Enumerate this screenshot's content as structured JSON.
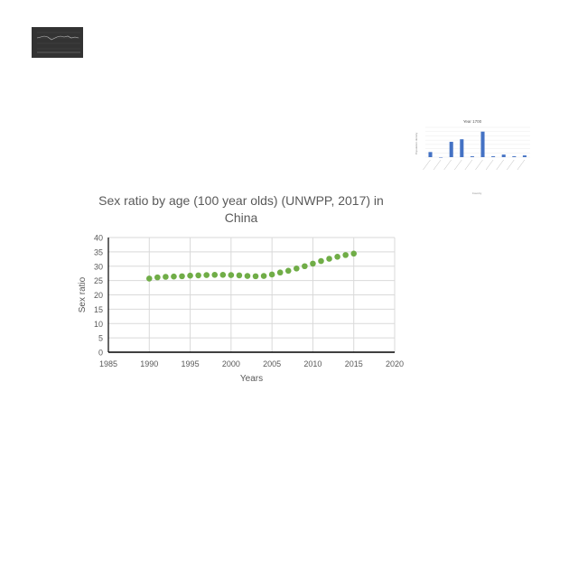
{
  "thumbnails": {
    "dark_chart": {
      "background": "#333333",
      "line_color": "#bfbfbf"
    },
    "bar_chart": {
      "title": "Year 1700",
      "ylabel": "Population density",
      "xlabel": "Country",
      "bar_color": "#4472c4",
      "values": [
        6,
        0,
        18,
        21,
        1,
        30,
        1,
        3,
        1,
        2
      ]
    }
  },
  "chart_data": {
    "type": "scatter",
    "title_lines": [
      "Sex ratio by age (100 year olds) (UNWPP, 2017) in",
      "China"
    ],
    "xlabel": "Years",
    "ylabel": "Sex ratio",
    "xlim": [
      1985,
      2020
    ],
    "ylim": [
      0,
      40
    ],
    "xticks": [
      1985,
      1990,
      1995,
      2000,
      2005,
      2010,
      2015,
      2020
    ],
    "yticks": [
      0,
      5,
      10,
      15,
      20,
      25,
      30,
      35,
      40
    ],
    "grid": true,
    "point_color": "#70ad47",
    "series": [
      {
        "x": [
          1990,
          1991,
          1992,
          1993,
          1994,
          1995,
          1996,
          1997,
          1998,
          1999,
          2000,
          2001,
          2002,
          2003,
          2004,
          2005,
          2006,
          2007,
          2008,
          2009,
          2010,
          2011,
          2012,
          2013,
          2014,
          2015
        ],
        "y": [
          25.7,
          26.1,
          26.3,
          26.4,
          26.5,
          26.7,
          26.8,
          26.9,
          27.0,
          27.0,
          26.9,
          26.8,
          26.6,
          26.5,
          26.6,
          27.1,
          27.8,
          28.4,
          29.2,
          30.0,
          30.9,
          31.8,
          32.6,
          33.3,
          33.9,
          34.4
        ]
      }
    ]
  }
}
